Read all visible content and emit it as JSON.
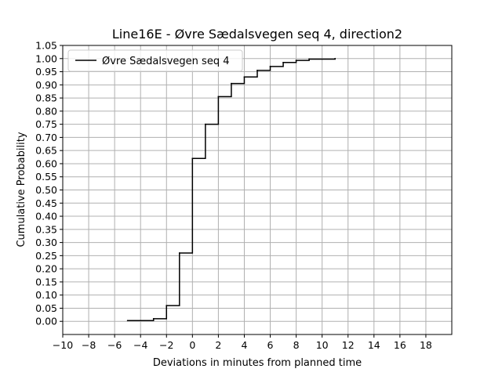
{
  "chart_data": {
    "type": "line",
    "step": true,
    "title": "Line16E - Øvre Sædalsvegen seq 4, direction2",
    "xlabel": "Deviations in minutes from planned time",
    "ylabel": "Cumulative Probability",
    "xlim": [
      -10,
      20
    ],
    "ylim": [
      -0.05,
      1.05
    ],
    "xticks": [
      -10,
      -8,
      -6,
      -4,
      -2,
      0,
      2,
      4,
      6,
      8,
      10,
      12,
      14,
      16,
      18
    ],
    "xtick_labels": [
      "−10",
      "−8",
      "−6",
      "−4",
      "−2",
      "0",
      "2",
      "4",
      "6",
      "8",
      "10",
      "12",
      "14",
      "16",
      "18"
    ],
    "yticks": [
      0.0,
      0.05,
      0.1,
      0.15,
      0.2,
      0.25,
      0.3,
      0.35,
      0.4,
      0.45,
      0.5,
      0.55,
      0.6,
      0.65,
      0.7,
      0.75,
      0.8,
      0.85,
      0.9,
      0.95,
      1.0,
      1.05
    ],
    "ytick_labels": [
      "0.00",
      "0.05",
      "0.10",
      "0.15",
      "0.20",
      "0.25",
      "0.30",
      "0.35",
      "0.40",
      "0.45",
      "0.50",
      "0.55",
      "0.60",
      "0.65",
      "0.70",
      "0.75",
      "0.80",
      "0.85",
      "0.90",
      "0.95",
      "1.00",
      "1.05"
    ],
    "grid": true,
    "legend_position": "top-left",
    "series": [
      {
        "name": "Øvre Sædalsvegen seq 4",
        "color": "#000000",
        "x": [
          -5,
          -3,
          -2,
          -1,
          0,
          1,
          2,
          3,
          4,
          5,
          6,
          7,
          8,
          9,
          11
        ],
        "y": [
          0.003,
          0.01,
          0.06,
          0.26,
          0.62,
          0.75,
          0.855,
          0.905,
          0.93,
          0.955,
          0.97,
          0.985,
          0.993,
          0.998,
          1.0
        ]
      }
    ]
  }
}
